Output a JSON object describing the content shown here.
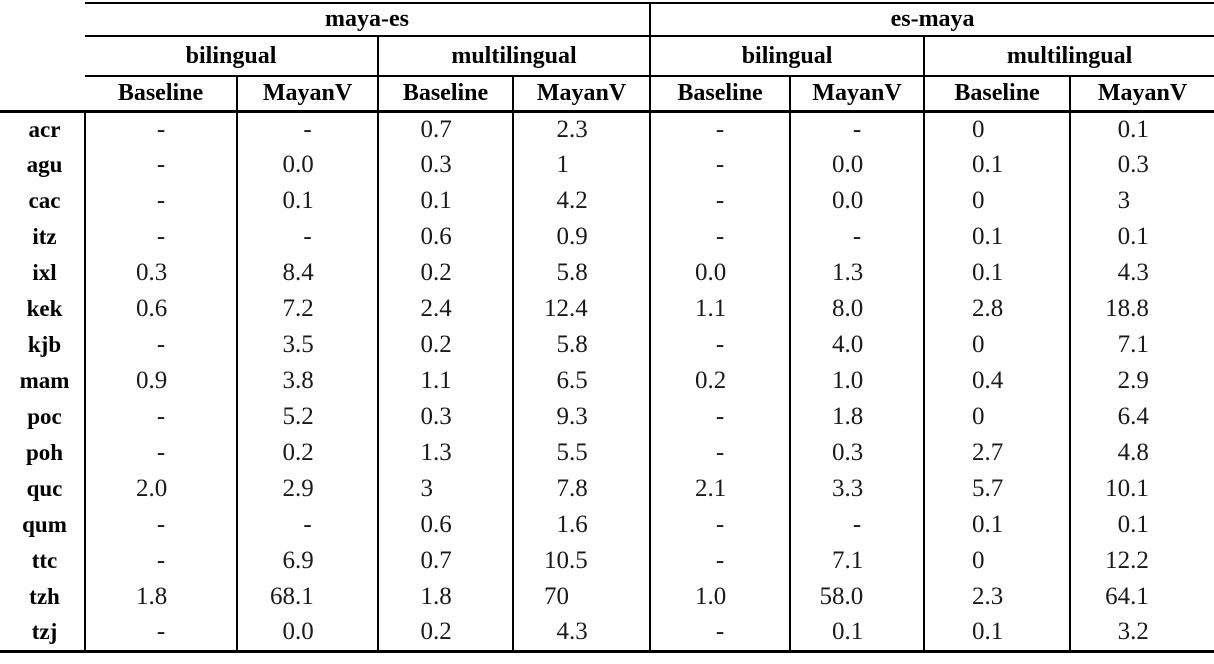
{
  "table": {
    "groups": [
      {
        "label": "maya-es",
        "subgroups": [
          "bilingual",
          "multilingual"
        ]
      },
      {
        "label": "es-maya",
        "subgroups": [
          "bilingual",
          "multilingual"
        ]
      }
    ],
    "col_headers": [
      "Baseline",
      "MayanV",
      "Baseline",
      "MayanV",
      "Baseline",
      "MayanV",
      "Baseline",
      "MayanV"
    ],
    "rows": [
      {
        "label": "acr",
        "values": [
          "-",
          "-",
          "0.7",
          "2.3",
          "-",
          "-",
          "0",
          "0.1"
        ]
      },
      {
        "label": "agu",
        "values": [
          "-",
          "0.0",
          "0.3",
          "1",
          "-",
          "0.0",
          "0.1",
          "0.3"
        ]
      },
      {
        "label": "cac",
        "values": [
          "-",
          "0.1",
          "0.1",
          "4.2",
          "-",
          "0.0",
          "0",
          "3"
        ]
      },
      {
        "label": "itz",
        "values": [
          "-",
          "-",
          "0.6",
          "0.9",
          "-",
          "-",
          "0.1",
          "0.1"
        ]
      },
      {
        "label": "ixl",
        "values": [
          "0.3",
          "8.4",
          "0.2",
          "5.8",
          "0.0",
          "1.3",
          "0.1",
          "4.3"
        ]
      },
      {
        "label": "kek",
        "values": [
          "0.6",
          "7.2",
          "2.4",
          "12.4",
          "1.1",
          "8.0",
          "2.8",
          "18.8"
        ]
      },
      {
        "label": "kjb",
        "values": [
          "-",
          "3.5",
          "0.2",
          "5.8",
          "-",
          "4.0",
          "0",
          "7.1"
        ]
      },
      {
        "label": "mam",
        "values": [
          "0.9",
          "3.8",
          "1.1",
          "6.5",
          "0.2",
          "1.0",
          "0.4",
          "2.9"
        ]
      },
      {
        "label": "poc",
        "values": [
          "-",
          "5.2",
          "0.3",
          "9.3",
          "-",
          "1.8",
          "0",
          "6.4"
        ]
      },
      {
        "label": "poh",
        "values": [
          "-",
          "0.2",
          "1.3",
          "5.5",
          "-",
          "0.3",
          "2.7",
          "4.8"
        ]
      },
      {
        "label": "quc",
        "values": [
          "2.0",
          "2.9",
          "3",
          "7.8",
          "2.1",
          "3.3",
          "5.7",
          "10.1"
        ]
      },
      {
        "label": "qum",
        "values": [
          "-",
          "-",
          "0.6",
          "1.6",
          "-",
          "-",
          "0.1",
          "0.1"
        ]
      },
      {
        "label": "ttc",
        "values": [
          "-",
          "6.9",
          "0.7",
          "10.5",
          "-",
          "7.1",
          "0",
          "12.2"
        ]
      },
      {
        "label": "tzh",
        "values": [
          "1.8",
          "68.1",
          "1.8",
          "70",
          "1.0",
          "58.0",
          "2.3",
          "64.1"
        ]
      },
      {
        "label": "tzj",
        "values": [
          "-",
          "0.0",
          "0.2",
          "4.3",
          "-",
          "0.1",
          "0.1",
          "3.2"
        ]
      }
    ]
  },
  "colors": {
    "background": "#ffffff",
    "text": "#111111",
    "border": "#000000"
  }
}
